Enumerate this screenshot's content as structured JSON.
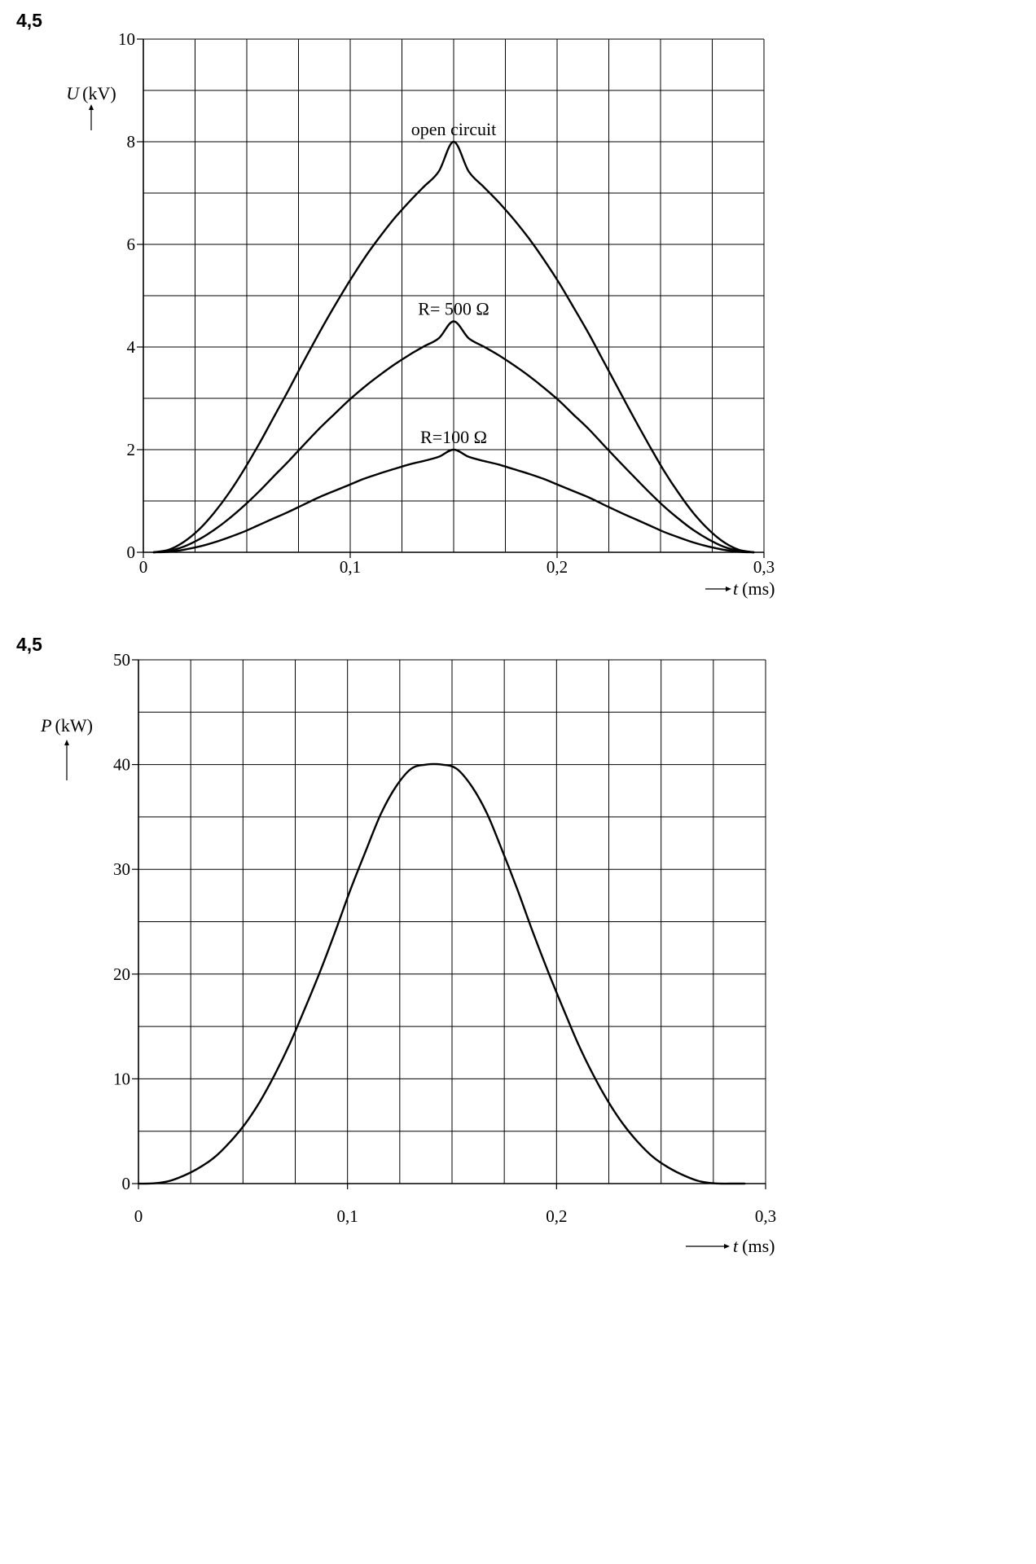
{
  "figures": [
    {
      "number": "4,5"
    },
    {
      "number": "4,5"
    }
  ],
  "chart_data": [
    {
      "type": "line",
      "title": "",
      "ylabel_symbol": "U",
      "ylabel_unit": "(kV)",
      "xlabel_symbol": "t",
      "xlabel_unit": "(ms)",
      "xlim": [
        0,
        0.3
      ],
      "ylim": [
        0,
        10
      ],
      "x_ticks": [
        0,
        0.1,
        0.2,
        0.3
      ],
      "x_tick_labels": [
        "0",
        "0,1",
        "0,2",
        "0,3"
      ],
      "y_ticks": [
        0,
        2,
        4,
        6,
        8,
        10
      ],
      "y_tick_labels": [
        "0",
        "2",
        "4",
        "6",
        "8",
        "10"
      ],
      "grid": true,
      "series": [
        {
          "name": "open circuit",
          "x": [
            0.005,
            0.0123,
            0.0195,
            0.0268,
            0.034,
            0.0413,
            0.0485,
            0.0558,
            0.063,
            0.0703,
            0.0775,
            0.0848,
            0.092,
            0.0993,
            0.1065,
            0.1138,
            0.121,
            0.1283,
            0.1355,
            0.1428,
            0.15,
            0.1573,
            0.1645,
            0.1718,
            0.179,
            0.1863,
            0.1935,
            0.2008,
            0.208,
            0.2153,
            0.2225,
            0.2298,
            0.237,
            0.2443,
            0.2515,
            0.2588,
            0.266,
            0.2733,
            0.2805,
            0.2878,
            0.295
          ],
          "y": [
            0,
            0.05,
            0.2,
            0.44,
            0.76,
            1.15,
            1.6,
            2.1,
            2.63,
            3.17,
            3.72,
            4.26,
            4.77,
            5.26,
            5.71,
            6.12,
            6.49,
            6.82,
            7.12,
            7.42,
            8,
            7.42,
            7.12,
            6.82,
            6.49,
            6.12,
            5.71,
            5.26,
            4.77,
            4.26,
            3.72,
            3.17,
            2.63,
            2.1,
            1.6,
            1.15,
            0.76,
            0.44,
            0.2,
            0.05,
            0
          ],
          "label_x": 0.15,
          "label_y": 8
        },
        {
          "name": "R= 500 Ω",
          "x": [
            0.005,
            0.0123,
            0.0195,
            0.0268,
            0.034,
            0.0413,
            0.0485,
            0.0558,
            0.063,
            0.0703,
            0.0775,
            0.0848,
            0.092,
            0.0993,
            0.1065,
            0.1138,
            0.121,
            0.1283,
            0.1355,
            0.1428,
            0.15,
            0.1573,
            0.1645,
            0.1718,
            0.179,
            0.1863,
            0.1935,
            0.2008,
            0.208,
            0.2153,
            0.2225,
            0.2298,
            0.237,
            0.2443,
            0.2515,
            0.2588,
            0.266,
            0.2733,
            0.2805,
            0.2878,
            0.295
          ],
          "y": [
            0,
            0.03,
            0.11,
            0.25,
            0.43,
            0.65,
            0.9,
            1.18,
            1.48,
            1.78,
            2.09,
            2.4,
            2.68,
            2.96,
            3.21,
            3.44,
            3.65,
            3.84,
            4.01,
            4.17,
            4.5,
            4.17,
            4.01,
            3.84,
            3.65,
            3.44,
            3.21,
            2.96,
            2.68,
            2.4,
            2.09,
            1.78,
            1.48,
            1.18,
            0.9,
            0.65,
            0.43,
            0.25,
            0.11,
            0.03,
            0
          ],
          "label_x": 0.15,
          "label_y": 4.5
        },
        {
          "name": "R=100 Ω",
          "x": [
            0.005,
            0.0123,
            0.0195,
            0.0268,
            0.034,
            0.0413,
            0.0485,
            0.0558,
            0.063,
            0.0703,
            0.0775,
            0.0848,
            0.092,
            0.0993,
            0.1065,
            0.1138,
            0.121,
            0.1283,
            0.1355,
            0.1428,
            0.15,
            0.1573,
            0.1645,
            0.1718,
            0.179,
            0.1863,
            0.1935,
            0.2008,
            0.208,
            0.2153,
            0.2225,
            0.2298,
            0.237,
            0.2443,
            0.2515,
            0.2588,
            0.266,
            0.2733,
            0.2805,
            0.2878,
            0.295
          ],
          "y": [
            0,
            0.01,
            0.05,
            0.11,
            0.19,
            0.29,
            0.4,
            0.53,
            0.66,
            0.79,
            0.93,
            1.07,
            1.19,
            1.31,
            1.43,
            1.53,
            1.62,
            1.71,
            1.78,
            1.86,
            2,
            1.86,
            1.78,
            1.71,
            1.62,
            1.53,
            1.43,
            1.31,
            1.19,
            1.07,
            0.93,
            0.79,
            0.66,
            0.53,
            0.4,
            0.29,
            0.19,
            0.11,
            0.05,
            0.01,
            0
          ],
          "label_x": 0.15,
          "label_y": 2
        }
      ]
    },
    {
      "type": "line",
      "title": "",
      "ylabel_symbol": "P",
      "ylabel_unit": "(kW)",
      "xlabel_symbol": "t",
      "xlabel_unit": "(ms)",
      "xlim": [
        0,
        0.3
      ],
      "ylim": [
        0,
        50
      ],
      "x_ticks": [
        0,
        0.1,
        0.2,
        0.3
      ],
      "x_tick_labels": [
        "0",
        "0,1",
        "0,2",
        "0,3"
      ],
      "y_ticks": [
        0,
        10,
        20,
        30,
        40,
        50
      ],
      "y_tick_labels": [
        "0",
        "10",
        "20",
        "30",
        "40",
        "50"
      ],
      "grid": true,
      "series": [
        {
          "x": [
            0,
            0.0072,
            0.0145,
            0.0218,
            0.029,
            0.0362,
            0.0435,
            0.0508,
            0.058,
            0.0652,
            0.0725,
            0.0798,
            0.087,
            0.0942,
            0.1015,
            0.1088,
            0.116,
            0.1232,
            0.1305,
            0.1378,
            0.145,
            0.1522,
            0.1595,
            0.1668,
            0.174,
            0.1812,
            0.1885,
            0.1958,
            0.203,
            0.2102,
            0.2175,
            0.2248,
            0.232,
            0.2392,
            0.2465,
            0.2538,
            0.261,
            0.2682,
            0.2755,
            0.2828,
            0.29
          ],
          "y": [
            0,
            0.02,
            0.23,
            0.77,
            1.5,
            2.48,
            3.9,
            5.64,
            7.8,
            10.4,
            13.4,
            16.8,
            20.3,
            24.1,
            28.1,
            31.8,
            35.3,
            37.9,
            39.6,
            40,
            40,
            39.6,
            37.9,
            35.3,
            31.8,
            28.1,
            24.1,
            20.3,
            16.8,
            13.4,
            10.4,
            7.8,
            5.64,
            3.9,
            2.48,
            1.5,
            0.77,
            0.23,
            0.02,
            0,
            0
          ]
        }
      ]
    }
  ]
}
